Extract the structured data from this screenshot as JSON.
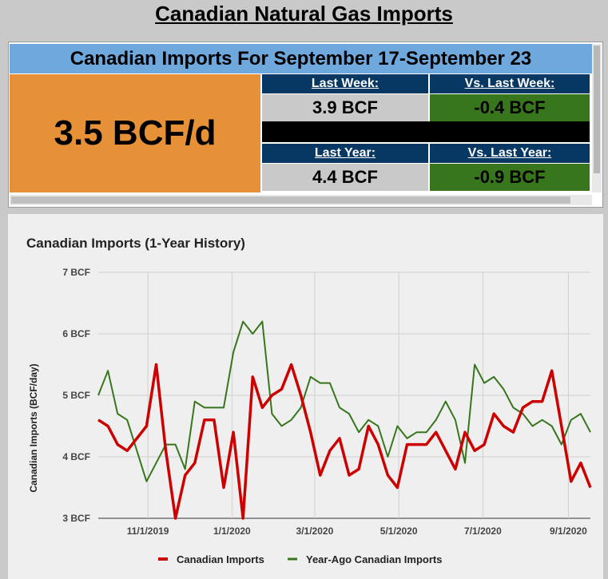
{
  "page": {
    "title": "Canadian Natural Gas Imports"
  },
  "summary": {
    "header": "Canadian Imports For September 17-September 23",
    "current": "3.5 BCF/d",
    "last_week_label": "Last Week:",
    "last_week_value": "3.9 BCF",
    "vs_last_week_label": "Vs. Last Week:",
    "vs_last_week_value": "-0.4 BCF",
    "last_year_label": "Last Year:",
    "last_year_value": "4.4 BCF",
    "vs_last_year_label": "Vs. Last Year:",
    "vs_last_year_value": "-0.9 BCF"
  },
  "colors": {
    "header_blue": "#6fa8dc",
    "orange": "#e69138",
    "navy": "#073763",
    "green": "#38761d",
    "series_current": "#cc0000",
    "series_year_ago": "#38761d"
  },
  "chart_data": {
    "type": "line",
    "title": "Canadian Imports (1-Year History)",
    "xlabel": "",
    "ylabel": "Canadian Imports (BCF/day)",
    "ylim": [
      3,
      7
    ],
    "yticks": [
      "3 BCF",
      "4 BCF",
      "5 BCF",
      "6 BCF",
      "7 BCF"
    ],
    "xticks": [
      "11/1/2019",
      "1/1/2020",
      "3/1/2020",
      "5/1/2020",
      "7/1/2020",
      "9/1/2020"
    ],
    "x": [
      "2019-09-26",
      "2019-10-03",
      "2019-10-10",
      "2019-10-17",
      "2019-10-24",
      "2019-10-31",
      "2019-11-07",
      "2019-11-14",
      "2019-11-21",
      "2019-11-28",
      "2019-12-05",
      "2019-12-12",
      "2019-12-19",
      "2019-12-26",
      "2020-01-02",
      "2020-01-09",
      "2020-01-16",
      "2020-01-23",
      "2020-01-30",
      "2020-02-06",
      "2020-02-13",
      "2020-02-20",
      "2020-02-27",
      "2020-03-05",
      "2020-03-12",
      "2020-03-19",
      "2020-03-26",
      "2020-04-02",
      "2020-04-09",
      "2020-04-16",
      "2020-04-23",
      "2020-04-30",
      "2020-05-07",
      "2020-05-14",
      "2020-05-21",
      "2020-05-28",
      "2020-06-04",
      "2020-06-11",
      "2020-06-18",
      "2020-06-25",
      "2020-07-02",
      "2020-07-09",
      "2020-07-16",
      "2020-07-23",
      "2020-07-30",
      "2020-08-06",
      "2020-08-13",
      "2020-08-20",
      "2020-08-27",
      "2020-09-03",
      "2020-09-10",
      "2020-09-17"
    ],
    "series": [
      {
        "name": "Canadian Imports",
        "color": "#cc0000",
        "values": [
          4.6,
          4.5,
          4.2,
          4.1,
          4.3,
          4.5,
          5.5,
          4.1,
          3.0,
          3.7,
          3.9,
          4.6,
          4.6,
          3.5,
          4.4,
          3.0,
          5.3,
          4.8,
          5.0,
          5.1,
          5.5,
          5.0,
          4.4,
          3.7,
          4.1,
          4.3,
          3.7,
          3.8,
          4.5,
          4.2,
          3.7,
          3.5,
          4.2,
          4.2,
          4.2,
          4.4,
          4.1,
          3.8,
          4.4,
          4.1,
          4.2,
          4.7,
          4.5,
          4.4,
          4.8,
          4.9,
          4.9,
          5.4,
          4.5,
          3.6,
          3.9,
          3.5
        ]
      },
      {
        "name": "Year-Ago Canadian Imports",
        "color": "#38761d",
        "values": [
          5.0,
          5.4,
          4.7,
          4.6,
          4.1,
          3.6,
          3.9,
          4.2,
          4.2,
          3.8,
          4.9,
          4.8,
          4.8,
          4.8,
          5.7,
          6.2,
          6.0,
          6.2,
          4.7,
          4.5,
          4.6,
          4.8,
          5.3,
          5.2,
          5.2,
          4.8,
          4.7,
          4.4,
          4.6,
          4.5,
          4.0,
          4.5,
          4.3,
          4.4,
          4.4,
          4.6,
          4.9,
          4.6,
          3.9,
          5.5,
          5.2,
          5.3,
          5.1,
          4.8,
          4.7,
          4.5,
          4.6,
          4.5,
          4.2,
          4.6,
          4.7,
          4.4
        ]
      }
    ],
    "legend": "bottom",
    "grid": true
  }
}
